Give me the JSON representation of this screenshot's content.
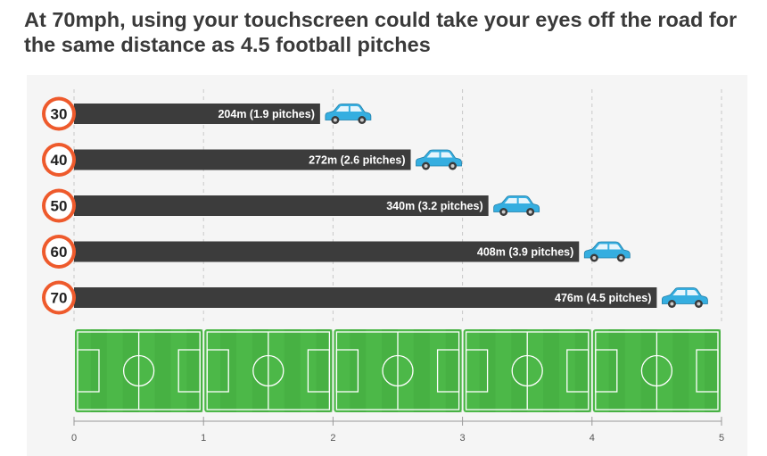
{
  "title": "At 70mph, using your touchscreen could take your eyes off the road for the same distance as 4.5 football pitches",
  "colors": {
    "bar": "#3c3c3c",
    "sign_ring": "#ee5a2c",
    "pitch": "#4cb848",
    "pitch_stripe": "#45ab41",
    "car": "#35aee0",
    "grid": "#c8c8c8",
    "axis": "#999999"
  },
  "icons": {
    "sign": "speed-limit-sign-icon",
    "car": "car-icon",
    "pitch": "football-pitch-icon"
  },
  "chart_data": {
    "type": "bar",
    "orientation": "horizontal",
    "categories": [
      "30",
      "40",
      "50",
      "60",
      "70"
    ],
    "values": [
      1.9,
      2.6,
      3.2,
      3.9,
      4.5
    ],
    "data_labels": [
      "204m (1.9 pitches)",
      "272m (2.6 pitches)",
      "340m (3.2 pitches)",
      "408m (3.9 pitches)",
      "476m (4.5 pitches)"
    ],
    "xlim": [
      0,
      5
    ],
    "x_ticks": [
      "0",
      "1",
      "2",
      "3",
      "4",
      "5"
    ],
    "xlabel": "",
    "ylabel": "",
    "grid": true,
    "pitches": 5
  }
}
